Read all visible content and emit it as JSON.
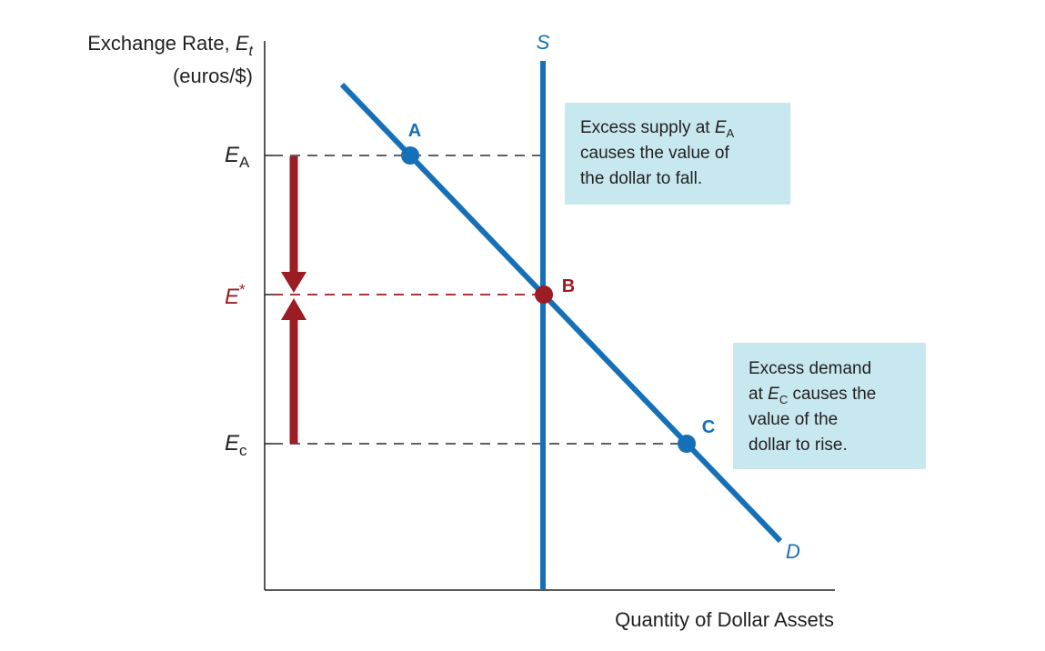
{
  "colors": {
    "axis": "#231f20",
    "curve_blue": "#1570b8",
    "equilibrium_red": "#9b1c22",
    "note_bg": "#c8e8f0",
    "dash": "#4a4a4a"
  },
  "y_axis": {
    "title_line1": "Exchange Rate, ",
    "title_var": "E",
    "title_sub": "t",
    "title_line2": "(euros/$)"
  },
  "x_axis": {
    "title": "Quantity of Dollar Assets"
  },
  "ticks": {
    "ea": {
      "main": "E",
      "sub": "A"
    },
    "estar": {
      "main": "E",
      "sup": "*"
    },
    "ec": {
      "main": "E",
      "sub": "c"
    }
  },
  "curves": {
    "supply": "S",
    "demand": "D"
  },
  "points": {
    "a": "A",
    "b": "B",
    "c": "C"
  },
  "notes": {
    "supply": {
      "line1_pre": "Excess supply at ",
      "line1_var": "E",
      "line1_sub": "A",
      "line2": "causes the value of",
      "line3": "the dollar to fall."
    },
    "demand": {
      "line1": "Excess demand",
      "line2_pre": "at ",
      "line2_var": "E",
      "line2_sub": "C",
      "line2_post": " causes the",
      "line3": "value of the",
      "line4": "dollar to rise."
    }
  }
}
